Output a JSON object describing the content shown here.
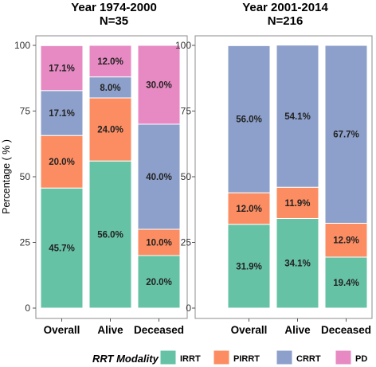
{
  "colors": {
    "IRRT": "#66c2a5",
    "PIRRT": "#fc8d62",
    "CRRT": "#8da0cb",
    "PD": "#e78ac3"
  },
  "legend": {
    "title": "RRT Modality",
    "entries": [
      "IRRT",
      "PIRRT",
      "CRRT",
      "PD"
    ]
  },
  "chart_data": [
    {
      "type": "bar",
      "stacked": true,
      "title": "Year 1974-2000",
      "subtitle": "N=35",
      "ylabel": "Percentage ( % )",
      "ylim": [
        0,
        100
      ],
      "yticks": [
        0,
        25,
        50,
        75,
        100
      ],
      "categories": [
        "Overall",
        "Alive",
        "Deceased"
      ],
      "series": [
        {
          "name": "IRRT",
          "values": [
            45.7,
            56.0,
            20.0
          ],
          "labels": [
            "45.7%",
            "56.0%",
            "20.0%"
          ]
        },
        {
          "name": "PIRRT",
          "values": [
            20.0,
            24.0,
            10.0
          ],
          "labels": [
            "20.0%",
            "24.0%",
            "10.0%"
          ]
        },
        {
          "name": "CRRT",
          "values": [
            17.1,
            8.0,
            40.0
          ],
          "labels": [
            "17.1%",
            "8.0%",
            "40.0%"
          ]
        },
        {
          "name": "PD",
          "values": [
            17.1,
            12.0,
            30.0
          ],
          "labels": [
            "17.1%",
            "12.0%",
            "30.0%"
          ]
        }
      ]
    },
    {
      "type": "bar",
      "stacked": true,
      "title": "Year 2001-2014",
      "subtitle": "N=216",
      "ylim": [
        0,
        100
      ],
      "yticks": [
        0,
        25,
        50,
        75,
        100
      ],
      "categories": [
        "Overall",
        "Alive",
        "Deceased"
      ],
      "series": [
        {
          "name": "IRRT",
          "values": [
            31.9,
            34.1,
            19.4
          ],
          "labels": [
            "31.9%",
            "34.1%",
            "19.4%"
          ]
        },
        {
          "name": "PIRRT",
          "values": [
            12.0,
            11.9,
            12.9
          ],
          "labels": [
            "12.0%",
            "11.9%",
            "12.9%"
          ]
        },
        {
          "name": "CRRT",
          "values": [
            56.0,
            54.1,
            67.7
          ],
          "labels": [
            "56.0%",
            "54.1%",
            "67.7%"
          ]
        }
      ]
    }
  ]
}
